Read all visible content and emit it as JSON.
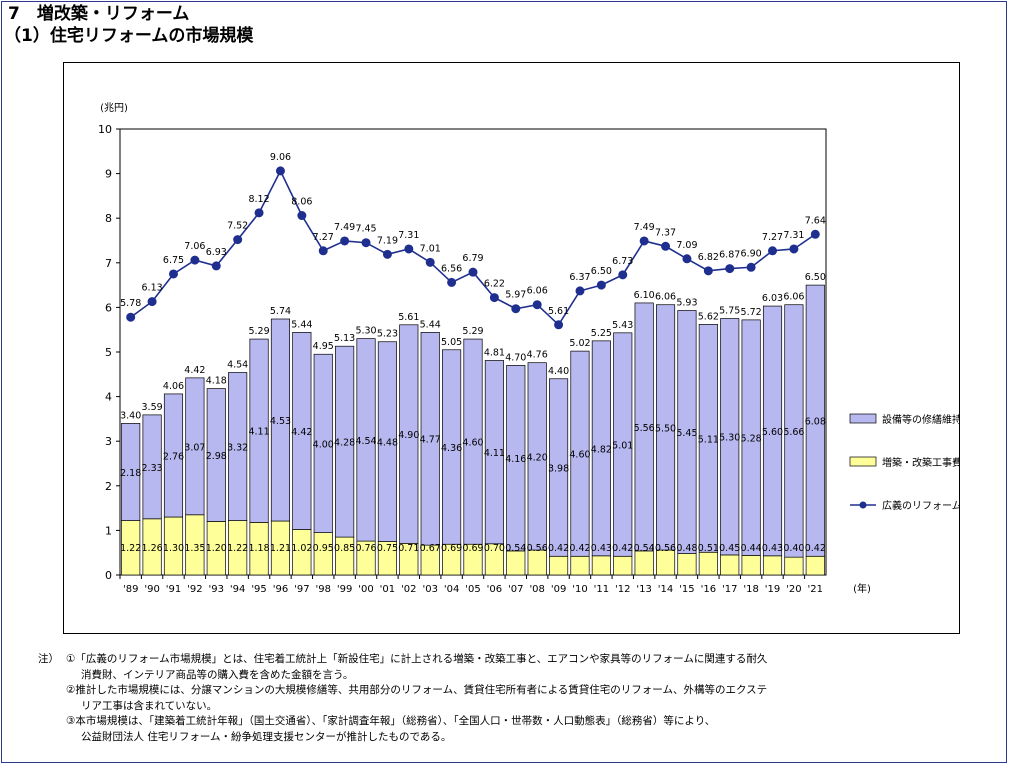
{
  "page": {
    "heading_section": "7　増改築・リフォーム",
    "heading_sub": "（1）住宅リフォームの市場規模"
  },
  "chart_data": {
    "type": "bar",
    "stacked": true,
    "yunit_label": "(兆円)",
    "xunit_label": "(年)",
    "ylim": [
      0,
      10
    ],
    "yticks": [
      0,
      1,
      2,
      3,
      4,
      5,
      6,
      7,
      8,
      9,
      10
    ],
    "categories": [
      "'89",
      "'90",
      "'91",
      "'92",
      "'93",
      "'94",
      "'95",
      "'96",
      "'97",
      "'98",
      "'99",
      "'00",
      "'01",
      "'02",
      "'03",
      "'04",
      "'05",
      "'06",
      "'07",
      "'08",
      "'09",
      "'10",
      "'11",
      "'12",
      "'13",
      "'14",
      "'15",
      "'16",
      "'17",
      "'18",
      "'19",
      "'20",
      "'21"
    ],
    "series": [
      {
        "name": "増築・改築工事費",
        "kind": "bar",
        "color": "#ffff99",
        "values": [
          1.22,
          1.26,
          1.3,
          1.35,
          1.2,
          1.22,
          1.18,
          1.21,
          1.02,
          0.95,
          0.85,
          0.76,
          0.75,
          0.71,
          0.67,
          0.69,
          0.69,
          0.7,
          0.54,
          0.56,
          0.42,
          0.42,
          0.43,
          0.42,
          0.54,
          0.56,
          0.48,
          0.51,
          0.45,
          0.44,
          0.43,
          0.4,
          0.42
        ]
      },
      {
        "name": "設備等の修繕維持費",
        "kind": "bar",
        "color": "#b8b8f0",
        "values": [
          2.18,
          2.33,
          2.76,
          3.07,
          2.98,
          3.32,
          4.11,
          4.53,
          4.42,
          4.0,
          4.28,
          4.54,
          4.48,
          4.9,
          4.77,
          4.36,
          4.6,
          4.11,
          4.16,
          4.2,
          3.98,
          4.6,
          4.82,
          5.01,
          5.56,
          5.5,
          5.45,
          5.11,
          5.3,
          5.28,
          5.6,
          5.66,
          6.08
        ]
      },
      {
        "name": "広義のリフォーム金額",
        "kind": "line",
        "color": "#1f2f8f",
        "values": [
          5.78,
          6.13,
          6.75,
          7.06,
          6.93,
          7.52,
          8.12,
          9.06,
          8.06,
          7.27,
          7.49,
          7.45,
          7.19,
          7.31,
          7.01,
          6.56,
          6.79,
          6.22,
          5.97,
          6.06,
          5.61,
          6.37,
          6.5,
          6.73,
          7.49,
          7.37,
          7.09,
          6.82,
          6.87,
          6.9,
          7.27,
          7.31,
          7.64
        ]
      }
    ],
    "totals_labels": [
      "3.40",
      "3.59",
      "4.06",
      "4.42",
      "4.18",
      "4.54",
      "5.29",
      "5.74",
      "5.44",
      "4.95",
      "5.13",
      "5.30",
      "5.23",
      "5.61",
      "5.44",
      "5.05",
      "5.29",
      "4.81",
      "4.70",
      "4.76",
      "4.40",
      "5.02",
      "5.25",
      "5.43",
      "6.10",
      "6.06",
      "5.93",
      "5.62",
      "5.75",
      "5.72",
      "6.03",
      "6.06",
      "6.50"
    ],
    "legend": [
      {
        "label": "設備等の修繕維持費",
        "kind": "bar",
        "color": "#b8b8f0"
      },
      {
        "label": "増築・改築工事費",
        "kind": "bar",
        "color": "#ffff99"
      },
      {
        "label": "広義のリフォーム金額",
        "kind": "line",
        "color": "#1f2f8f"
      }
    ],
    "legend_position": "right"
  },
  "notes": {
    "prefix": "注）",
    "lines": [
      "①「広義のリフォーム市場規模」とは、住宅着工統計上「新設住宅」に計上される増築・改築工事と、エアコンや家具等のリフォームに関連する耐久",
      "消費財、インテリア商品等の購入費を含めた金額を言う。",
      "②推計した市場規模には、分譲マンションの大規模修繕等、共用部分のリフォーム、賃貸住宅所有者による賃貸住宅のリフォーム、外構等のエクステ",
      "リア工事は含まれていない。",
      "③本市場規模は、「建築着工統計年報」（国土交通省）、「家計調査年報」（総務省）、「全国人口・世帯数・人口動態表」（総務省）等により、",
      "公益財団法人 住宅リフォーム・紛争処理支援センターが推計したものである。"
    ]
  }
}
